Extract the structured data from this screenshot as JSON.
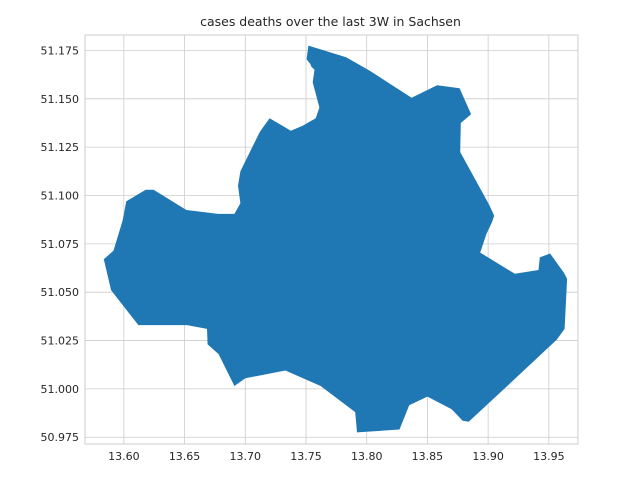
{
  "chart_data": {
    "type": "map",
    "title": "cases deaths over the last 3W in Sachsen",
    "xlabel": "",
    "ylabel": "",
    "xlim": [
      13.568,
      13.974
    ],
    "ylim": [
      50.9715,
      51.183
    ],
    "xticks": [
      13.6,
      13.65,
      13.7,
      13.75,
      13.8,
      13.85,
      13.9,
      13.95
    ],
    "xtick_labels": [
      "13.60",
      "13.65",
      "13.70",
      "13.75",
      "13.80",
      "13.85",
      "13.90",
      "13.95"
    ],
    "yticks": [
      50.975,
      51.0,
      51.025,
      51.05,
      51.075,
      51.1,
      51.125,
      51.15,
      51.175
    ],
    "ytick_labels": [
      "50.975",
      "51.000",
      "51.025",
      "51.050",
      "51.075",
      "51.100",
      "51.125",
      "51.150",
      "51.175"
    ],
    "grid": true,
    "fill_color": "#1f77b4",
    "region": {
      "polygon": [
        [
          13.752,
          51.1775
        ],
        [
          13.783,
          51.1715
        ],
        [
          13.8025,
          51.1645
        ],
        [
          13.837,
          51.1505
        ],
        [
          13.858,
          51.157
        ],
        [
          13.8765,
          51.1555
        ],
        [
          13.886,
          51.142
        ],
        [
          13.8775,
          51.1375
        ],
        [
          13.877,
          51.1225
        ],
        [
          13.901,
          51.095
        ],
        [
          13.905,
          51.0895
        ],
        [
          13.903,
          51.086
        ],
        [
          13.8985,
          51.08
        ],
        [
          13.8935,
          51.0705
        ],
        [
          13.922,
          51.0595
        ],
        [
          13.9415,
          51.0615
        ],
        [
          13.9425,
          51.068
        ],
        [
          13.951,
          51.07
        ],
        [
          13.9625,
          51.06
        ],
        [
          13.965,
          51.057
        ],
        [
          13.963,
          51.031
        ],
        [
          13.9565,
          51.0255
        ],
        [
          13.9225,
          51.0055
        ],
        [
          13.884,
          50.983
        ],
        [
          13.879,
          50.9835
        ],
        [
          13.87,
          50.9895
        ],
        [
          13.85,
          50.996
        ],
        [
          13.835,
          50.9915
        ],
        [
          13.827,
          50.979
        ],
        [
          13.792,
          50.9775
        ],
        [
          13.7905,
          50.988
        ],
        [
          13.762,
          51.0015
        ],
        [
          13.733,
          51.0095
        ],
        [
          13.7,
          51.0055
        ],
        [
          13.691,
          51.0015
        ],
        [
          13.678,
          51.018
        ],
        [
          13.669,
          51.023
        ],
        [
          13.6685,
          51.031
        ],
        [
          13.652,
          51.033
        ],
        [
          13.6395,
          51.033
        ],
        [
          13.612,
          51.033
        ],
        [
          13.5895,
          51.051
        ],
        [
          13.5835,
          51.067
        ],
        [
          13.5915,
          51.0715
        ],
        [
          13.599,
          51.087
        ],
        [
          13.602,
          51.097
        ],
        [
          13.618,
          51.103
        ],
        [
          13.6245,
          51.103
        ],
        [
          13.6515,
          51.0925
        ],
        [
          13.6775,
          51.0905
        ],
        [
          13.691,
          51.0905
        ],
        [
          13.696,
          51.096
        ],
        [
          13.694,
          51.105
        ],
        [
          13.696,
          51.1125
        ],
        [
          13.712,
          51.133
        ],
        [
          13.72,
          51.14
        ],
        [
          13.7375,
          51.1335
        ],
        [
          13.747,
          51.136
        ],
        [
          13.758,
          51.14
        ],
        [
          13.761,
          51.1455
        ],
        [
          13.7555,
          51.1585
        ],
        [
          13.757,
          51.165
        ],
        [
          13.7545,
          51.1665
        ],
        [
          13.7535,
          51.168
        ],
        [
          13.7505,
          51.1705
        ]
      ]
    }
  }
}
